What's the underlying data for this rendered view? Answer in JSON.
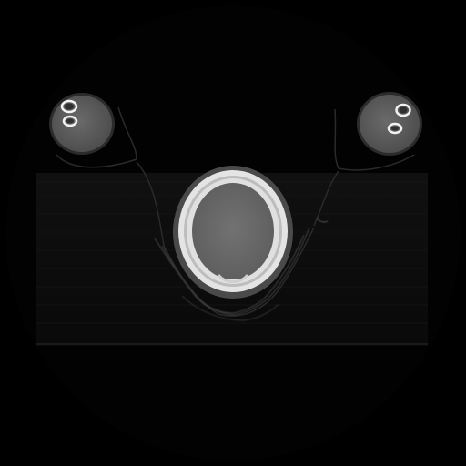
{
  "image": {
    "modality": "CT",
    "plane": "axial",
    "window": "bone",
    "structures": [
      "head-cross-section",
      "left-upper-arm-cross-section",
      "right-upper-arm-cross-section",
      "scanner-table"
    ]
  },
  "colors": {
    "background": "#000000",
    "soft_tissue_dim": "#0c0c0c",
    "soft_tissue": "#5a5a5a",
    "brain": "#6b6b6b",
    "skull_bone": "#e8e8e8",
    "cortical_bone": "#f2f2f2",
    "table": "#141414",
    "edge": "#8a8a8a"
  }
}
